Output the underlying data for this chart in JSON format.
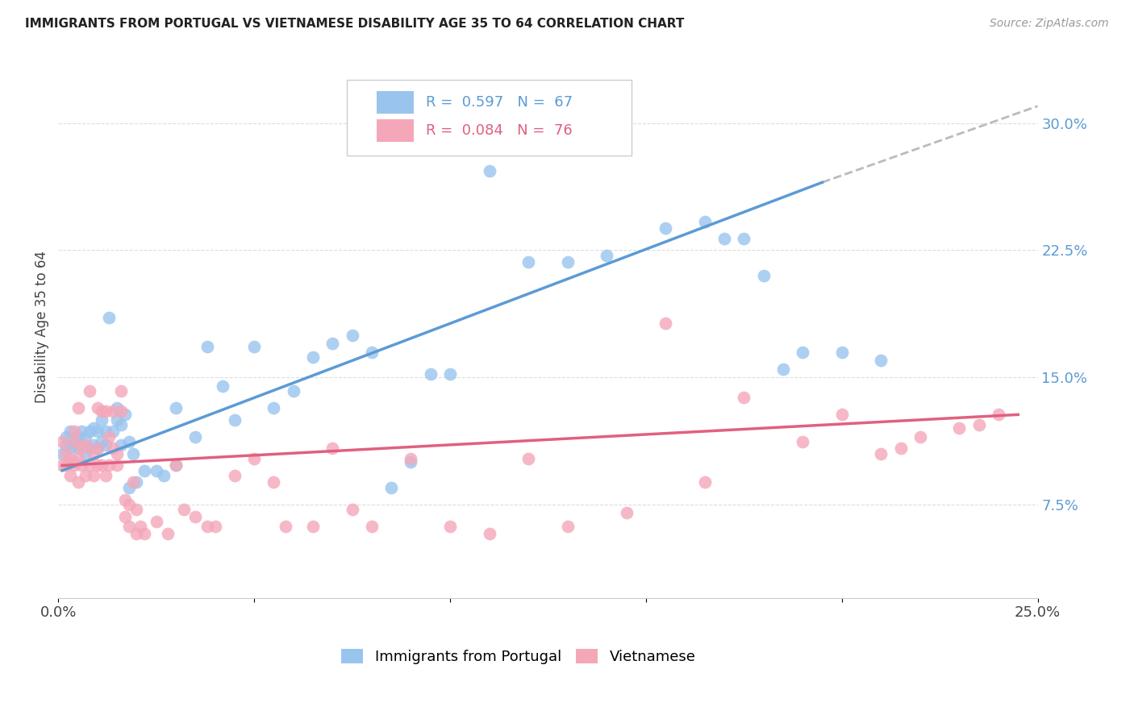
{
  "title": "IMMIGRANTS FROM PORTUGAL VS VIETNAMESE DISABILITY AGE 35 TO 64 CORRELATION CHART",
  "source": "Source: ZipAtlas.com",
  "ylabel": "Disability Age 35 to 64",
  "xlim": [
    0.0,
    0.25
  ],
  "ylim": [
    0.02,
    0.34
  ],
  "xtick_positions": [
    0.0,
    0.05,
    0.1,
    0.15,
    0.2,
    0.25
  ],
  "xticklabels": [
    "0.0%",
    "",
    "",
    "",
    "",
    "25.0%"
  ],
  "yticks_right": [
    0.075,
    0.15,
    0.225,
    0.3
  ],
  "ytick_right_labels": [
    "7.5%",
    "15.0%",
    "22.5%",
    "30.0%"
  ],
  "legend_label1": "Immigrants from Portugal",
  "legend_label2": "Vietnamese",
  "R1": "0.597",
  "N1": "67",
  "R2": "0.084",
  "N2": "76",
  "color_blue": "#99C4EE",
  "color_pink": "#F4A7B9",
  "color_blue_line": "#5B9BD5",
  "color_pink_line": "#E06080",
  "color_dashed": "#BBBBBB",
  "blue_x": [
    0.001,
    0.002,
    0.002,
    0.003,
    0.003,
    0.004,
    0.004,
    0.005,
    0.005,
    0.006,
    0.006,
    0.007,
    0.007,
    0.008,
    0.008,
    0.009,
    0.009,
    0.01,
    0.01,
    0.011,
    0.011,
    0.012,
    0.012,
    0.013,
    0.014,
    0.015,
    0.015,
    0.016,
    0.016,
    0.017,
    0.018,
    0.018,
    0.019,
    0.02,
    0.022,
    0.025,
    0.027,
    0.03,
    0.03,
    0.035,
    0.038,
    0.042,
    0.045,
    0.05,
    0.055,
    0.06,
    0.065,
    0.07,
    0.075,
    0.08,
    0.085,
    0.09,
    0.095,
    0.1,
    0.11,
    0.12,
    0.13,
    0.14,
    0.155,
    0.165,
    0.17,
    0.175,
    0.18,
    0.185,
    0.19,
    0.2,
    0.21
  ],
  "blue_y": [
    0.105,
    0.11,
    0.115,
    0.108,
    0.118,
    0.1,
    0.112,
    0.108,
    0.115,
    0.11,
    0.118,
    0.105,
    0.115,
    0.108,
    0.118,
    0.11,
    0.12,
    0.108,
    0.118,
    0.112,
    0.125,
    0.11,
    0.118,
    0.185,
    0.118,
    0.125,
    0.132,
    0.122,
    0.11,
    0.128,
    0.112,
    0.085,
    0.105,
    0.088,
    0.095,
    0.095,
    0.092,
    0.132,
    0.098,
    0.115,
    0.168,
    0.145,
    0.125,
    0.168,
    0.132,
    0.142,
    0.162,
    0.17,
    0.175,
    0.165,
    0.085,
    0.1,
    0.152,
    0.152,
    0.272,
    0.218,
    0.218,
    0.222,
    0.238,
    0.242,
    0.232,
    0.232,
    0.21,
    0.155,
    0.165,
    0.165,
    0.16
  ],
  "pink_x": [
    0.001,
    0.001,
    0.002,
    0.002,
    0.003,
    0.003,
    0.004,
    0.004,
    0.004,
    0.005,
    0.005,
    0.005,
    0.006,
    0.006,
    0.007,
    0.007,
    0.008,
    0.008,
    0.009,
    0.009,
    0.01,
    0.01,
    0.01,
    0.011,
    0.011,
    0.012,
    0.012,
    0.013,
    0.013,
    0.014,
    0.014,
    0.015,
    0.015,
    0.016,
    0.016,
    0.017,
    0.017,
    0.018,
    0.018,
    0.019,
    0.02,
    0.02,
    0.021,
    0.022,
    0.025,
    0.028,
    0.03,
    0.032,
    0.035,
    0.038,
    0.04,
    0.045,
    0.05,
    0.055,
    0.058,
    0.065,
    0.07,
    0.075,
    0.08,
    0.09,
    0.1,
    0.11,
    0.12,
    0.13,
    0.145,
    0.155,
    0.165,
    0.175,
    0.19,
    0.2,
    0.21,
    0.215,
    0.22,
    0.23,
    0.235,
    0.24
  ],
  "pink_y": [
    0.098,
    0.112,
    0.098,
    0.105,
    0.092,
    0.102,
    0.118,
    0.098,
    0.112,
    0.132,
    0.102,
    0.088,
    0.098,
    0.108,
    0.092,
    0.11,
    0.098,
    0.142,
    0.092,
    0.105,
    0.098,
    0.132,
    0.108,
    0.098,
    0.13,
    0.092,
    0.13,
    0.098,
    0.115,
    0.108,
    0.13,
    0.105,
    0.098,
    0.142,
    0.13,
    0.078,
    0.068,
    0.075,
    0.062,
    0.088,
    0.058,
    0.072,
    0.062,
    0.058,
    0.065,
    0.058,
    0.098,
    0.072,
    0.068,
    0.062,
    0.062,
    0.092,
    0.102,
    0.088,
    0.062,
    0.062,
    0.108,
    0.072,
    0.062,
    0.102,
    0.062,
    0.058,
    0.102,
    0.062,
    0.07,
    0.182,
    0.088,
    0.138,
    0.112,
    0.128,
    0.105,
    0.108,
    0.115,
    0.12,
    0.122,
    0.128
  ],
  "blue_line_x": [
    0.001,
    0.195
  ],
  "blue_line_y": [
    0.095,
    0.265
  ],
  "pink_line_x": [
    0.001,
    0.245
  ],
  "pink_line_y": [
    0.098,
    0.128
  ],
  "dash_line_x": [
    0.195,
    0.25
  ],
  "dash_line_y": [
    0.265,
    0.31
  ]
}
